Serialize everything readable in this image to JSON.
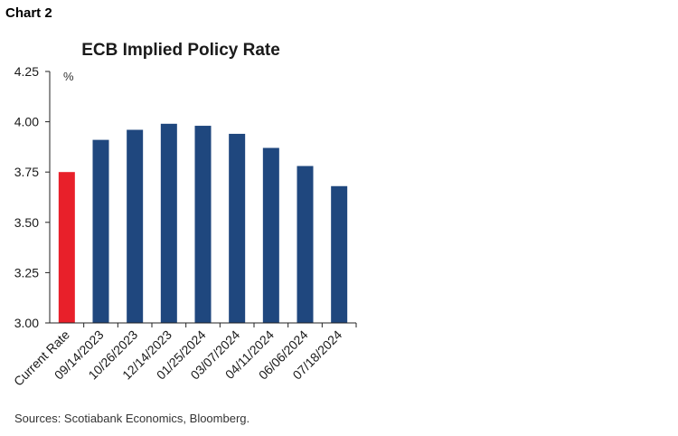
{
  "chart_label": "Chart 2",
  "source": "Sources: Scotiabank Economics, Bloomberg.",
  "colors": {
    "highlight": "#e8202a",
    "bar": "#1f477e",
    "axis": "#222222",
    "text": "#1a1a1a"
  },
  "chart_data": {
    "type": "bar",
    "title": "ECB Implied Policy Rate",
    "unit_label": "%",
    "xlabel": "",
    "ylabel": "",
    "ylim": [
      3.0,
      4.25
    ],
    "yticks": [
      "3.00",
      "3.25",
      "3.50",
      "3.75",
      "4.00",
      "4.25"
    ],
    "grid": false,
    "categories": [
      "Current Rate",
      "09/14/2023",
      "10/26/2023",
      "12/14/2023",
      "01/25/2024",
      "03/07/2024",
      "04/11/2024",
      "06/06/2024",
      "07/18/2024"
    ],
    "values": [
      3.75,
      3.91,
      3.96,
      3.99,
      3.98,
      3.94,
      3.87,
      3.78,
      3.68
    ],
    "highlight_index": 0
  }
}
